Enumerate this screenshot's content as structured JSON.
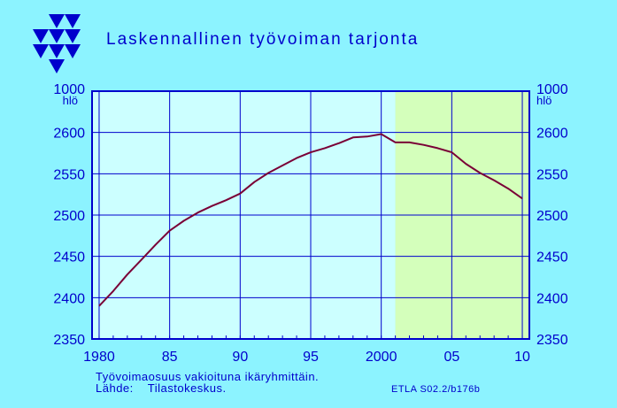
{
  "chart_data": {
    "type": "line",
    "title": "Laskennallinen työvoiman tarjonta",
    "unit_label": "1000 hlö",
    "unit_line1": "1000",
    "unit_line2": "hlö",
    "ylim": [
      2350,
      2650
    ],
    "yticks": [
      2350,
      2400,
      2450,
      2500,
      2550,
      2600
    ],
    "xlim": [
      1979.5,
      2010.5
    ],
    "xticks": [
      1980,
      1985,
      1990,
      1995,
      2000,
      2005,
      2010
    ],
    "xtick_labels": [
      "1980",
      "85",
      "90",
      "95",
      "2000",
      "05",
      "10"
    ],
    "forecast_start": 2001,
    "grid": true,
    "colors": {
      "background": "#8cf3ff",
      "history_area": "#ccffff",
      "forecast_area": "#d4ffbb",
      "grid": "#0000cc",
      "line": "#7a0036",
      "text": "#0000cc"
    },
    "series": [
      {
        "x": [
          1980,
          1981,
          1982,
          1983,
          1984,
          1985,
          1986,
          1987,
          1988,
          1989,
          1990,
          1991,
          1992,
          1993,
          1994,
          1995,
          1996,
          1997,
          1998,
          1999,
          2000,
          2001,
          2002,
          2003,
          2004,
          2005,
          2006,
          2007,
          2008,
          2009,
          2010
        ],
        "values": [
          2390,
          2408,
          2428,
          2446,
          2464,
          2481,
          2493,
          2503,
          2511,
          2518,
          2526,
          2540,
          2551,
          2560,
          2569,
          2576,
          2581,
          2587,
          2594,
          2595,
          2598,
          2588,
          2588,
          2585,
          2581,
          2576,
          2562,
          2551,
          2542,
          2532,
          2520
        ]
      }
    ]
  },
  "notes": {
    "line1": "Työvoimaosuus vakioituna ikäryhmittäin.",
    "source_label": "Lähde:",
    "source_value": "Tilastokeskus.",
    "credit": "ETLA S02.2/b176b"
  }
}
